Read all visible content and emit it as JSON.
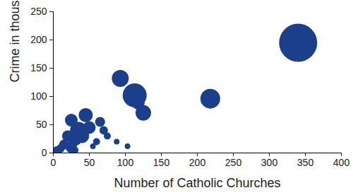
{
  "chart_data": {
    "type": "scatter",
    "x_label": "Number of Catholic Churches",
    "y_label": "Crime in thousands",
    "color": "#1c3f8c",
    "grid": false,
    "x": [
      340,
      218,
      113,
      93,
      125,
      118,
      88,
      103,
      45,
      25,
      65,
      35,
      50,
      70,
      75,
      20,
      30,
      40,
      15,
      25,
      5,
      10,
      55,
      60,
      30
    ],
    "values": [
      195,
      96,
      102,
      132,
      71,
      88,
      20,
      12,
      67,
      58,
      55,
      40,
      45,
      40,
      30,
      30,
      25,
      30,
      15,
      10,
      3,
      8,
      12,
      20,
      5
    ],
    "sizes": [
      729,
      196,
      289,
      144,
      121,
      81,
      16,
      16,
      100,
      81,
      49,
      144,
      81,
      36,
      25,
      64,
      100,
      100,
      49,
      64,
      49,
      36,
      16,
      25,
      25
    ],
    "xlim": [
      0,
      400
    ],
    "xticks": [
      0,
      50,
      100,
      150,
      200,
      250,
      300,
      350,
      400
    ],
    "ylim": [
      0,
      250
    ],
    "yticks": [
      0,
      50,
      100,
      150,
      200,
      250
    ]
  }
}
